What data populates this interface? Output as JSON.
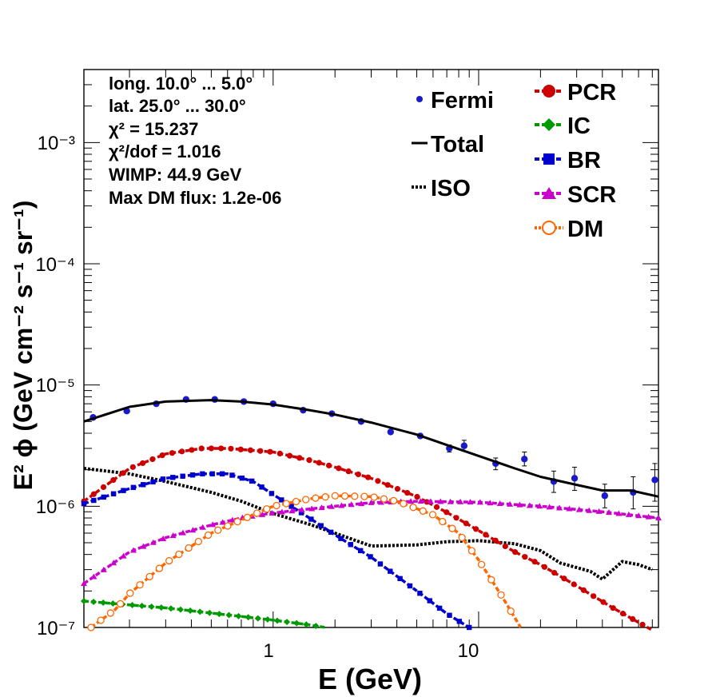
{
  "chart_data": {
    "type": "scatter",
    "title": "",
    "xlabel": "E (GeV)",
    "ylabel": "E² ϕ (GeV cm⁻² s⁻¹ sr⁻¹)",
    "xscale": "log",
    "yscale": "log",
    "xlim": [
      0.12,
      75
    ],
    "ylim": [
      1e-07,
      0.004
    ],
    "x_tick_labels": [
      "1",
      "10"
    ],
    "y_tick_labels": [
      "10⁻⁷",
      "10⁻⁶",
      "10⁻⁵",
      "10⁻⁴",
      "10⁻³"
    ],
    "grid": false,
    "annotations": [
      "long. 10.0° ... 5.0°",
      "lat. 25.0° ... 30.0°",
      "χ² = 15.237",
      "χ²/dof = 1.016",
      "WIMP: 44.9 GeV",
      "Max DM flux: 1.2e-06"
    ],
    "legend_left": [
      "Fermi",
      "Total",
      "ISO"
    ],
    "legend_right": [
      "PCR",
      "IC",
      "BR",
      "SCR",
      "DM"
    ],
    "series": [
      {
        "name": "Fermi",
        "style": "points",
        "color": "#1a1acc",
        "x": [
          0.133,
          0.194,
          0.27,
          0.377,
          0.52,
          0.72,
          1.0,
          1.4,
          1.93,
          2.68,
          3.73,
          5.2,
          7.2,
          8.5,
          12.1,
          16.7,
          23.2,
          29.3,
          41.1,
          56.5,
          72.0
        ],
        "y": [
          5.4e-06,
          6.1e-06,
          7e-06,
          7.6e-06,
          7.6e-06,
          7.3e-06,
          7e-06,
          6.2e-06,
          5.8e-06,
          5e-06,
          4.1e-06,
          3.8e-06,
          3e-06,
          3.15e-06,
          2.25e-06,
          2.45e-06,
          1.6e-06,
          1.7e-06,
          1.22e-06,
          1.3e-06,
          1.65e-06
        ],
        "yerr_low": [
          0,
          0,
          0,
          0,
          0,
          0,
          0,
          0,
          0,
          0,
          0,
          0,
          2e-07,
          3e-07,
          2.5e-07,
          3e-07,
          3e-07,
          3.5e-07,
          2.5e-07,
          3.5e-07,
          5.5e-07
        ],
        "yerr_high": [
          0,
          0,
          0,
          0,
          0,
          0,
          0,
          0,
          0,
          0,
          0,
          0,
          2e-07,
          3.5e-07,
          2.5e-07,
          3.5e-07,
          3.5e-07,
          4e-07,
          3e-07,
          4.5e-07,
          6e-07
        ]
      },
      {
        "name": "Total",
        "style": "solid",
        "color": "#000000",
        "x": [
          0.12,
          0.2,
          0.3,
          0.5,
          0.7,
          1.0,
          1.5,
          2.0,
          3.0,
          5.0,
          7.0,
          10.0,
          15.0,
          20.0,
          30.0,
          40.0,
          55.0,
          75.0
        ],
        "y": [
          5e-06,
          6.6e-06,
          7.3e-06,
          7.5e-06,
          7.3e-06,
          6.9e-06,
          6.2e-06,
          5.7e-06,
          4.9e-06,
          3.9e-06,
          3.2e-06,
          2.6e-06,
          2.05e-06,
          1.75e-06,
          1.5e-06,
          1.35e-06,
          1.35e-06,
          1.2e-06
        ]
      },
      {
        "name": "ISO",
        "style": "dotted",
        "color": "#000000",
        "x": [
          0.12,
          0.2,
          0.3,
          0.5,
          0.7,
          1.0,
          1.5,
          2.0,
          3.0,
          5.0,
          7.0,
          10.0,
          15.0,
          20.0,
          25.0,
          35.0,
          40.0,
          50.0,
          60.0,
          70.0
        ],
        "y": [
          2.05e-06,
          1.85e-06,
          1.6e-06,
          1.3e-06,
          1.1e-06,
          8.7e-07,
          7.1e-07,
          6e-07,
          4.7e-07,
          4.8e-07,
          5.1e-07,
          5.2e-07,
          4.9e-07,
          4.3e-07,
          3.4e-07,
          2.9e-07,
          2.5e-07,
          3.5e-07,
          3.3e-07,
          3e-07
        ]
      },
      {
        "name": "PCR",
        "style": "dashed-markers",
        "marker": "circle",
        "color": "#cc0000",
        "x": [
          0.12,
          0.2,
          0.3,
          0.45,
          0.6,
          1.0,
          1.5,
          2.0,
          3.0,
          5.0,
          7.0,
          10.0,
          15.0,
          20.0,
          30.0,
          45.0,
          70.0
        ],
        "y": [
          1.1e-06,
          2.05e-06,
          2.7e-06,
          3e-06,
          3e-06,
          2.8e-06,
          2.4e-06,
          2.1e-06,
          1.7e-06,
          1.2e-06,
          8.9e-07,
          6.3e-07,
          4.2e-07,
          3.3e-07,
          2.2e-07,
          1.45e-07,
          9.5e-08
        ]
      },
      {
        "name": "IC",
        "style": "dashed-markers",
        "marker": "diamond",
        "color": "#009900",
        "x": [
          0.12,
          0.3,
          0.6,
          1.0,
          1.5,
          1.8
        ],
        "y": [
          1.65e-07,
          1.45e-07,
          1.27e-07,
          1.15e-07,
          1.05e-07,
          1e-07
        ]
      },
      {
        "name": "BR",
        "style": "dashed-markers",
        "marker": "square",
        "color": "#0000cc",
        "x": [
          0.12,
          0.2,
          0.3,
          0.45,
          0.6,
          0.8,
          1.0,
          1.5,
          2.0,
          3.0,
          5.0,
          7.0,
          9.0
        ],
        "y": [
          1.05e-06,
          1.4e-06,
          1.7e-06,
          1.85e-06,
          1.85e-06,
          1.6e-06,
          1.25e-06,
          8e-07,
          5.8e-07,
          3.8e-07,
          2e-07,
          1.3e-07,
          1e-07
        ]
      },
      {
        "name": "SCR",
        "style": "dashed-markers",
        "marker": "triangle",
        "color": "#cc00cc",
        "x": [
          0.12,
          0.2,
          0.3,
          0.5,
          0.7,
          1.0,
          2.0,
          3.0,
          5.0,
          10.0,
          20.0,
          40.0,
          75.0
        ],
        "y": [
          2.3e-07,
          4.2e-07,
          5.5e-07,
          7e-07,
          8e-07,
          8.8e-07,
          1e-06,
          1.07e-06,
          1.1e-06,
          1.08e-06,
          1e-06,
          9e-07,
          8e-07
        ]
      },
      {
        "name": "DM",
        "style": "dashed-markers",
        "marker": "open-circle",
        "color": "#ff6600",
        "x": [
          0.13,
          0.17,
          0.2,
          0.3,
          0.5,
          0.8,
          1.0,
          1.5,
          2.0,
          3.0,
          4.0,
          6.0,
          8.0,
          10.0,
          13.0,
          16.0
        ],
        "y": [
          1e-07,
          1.4e-07,
          1.9e-07,
          3.4e-07,
          6e-07,
          8.5e-07,
          1e-06,
          1.15e-06,
          1.22e-06,
          1.2e-06,
          1.1e-06,
          8.5e-07,
          6e-07,
          3.6e-07,
          1.8e-07,
          1e-07
        ]
      }
    ]
  }
}
